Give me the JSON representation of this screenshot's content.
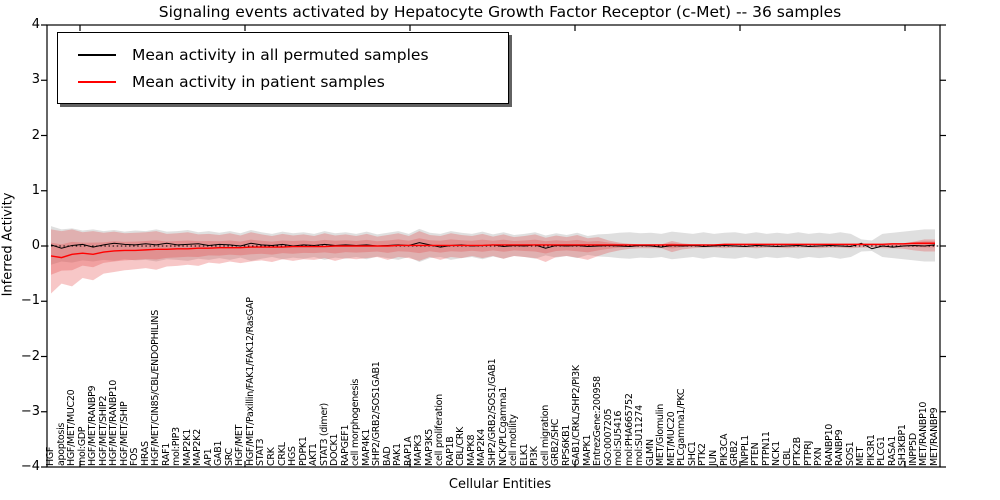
{
  "chart_data": {
    "type": "line",
    "title": "Signaling events activated by Hepatocyte Growth Factor Receptor (c-Met) -- 36 samples",
    "xlabel": "Cellular Entities",
    "ylabel": "Inferred Activity",
    "ylim": [
      -4,
      4
    ],
    "yticks": [
      4,
      3,
      2,
      1,
      0,
      -1,
      -2,
      -3,
      -4
    ],
    "grid": false,
    "legend_position": "upper left",
    "zero_line": {
      "value": 0,
      "style": "dotted",
      "color": "#000000"
    },
    "categories": [
      "HGF",
      "apoptosis",
      "HGF/MET/MUC20",
      "mol:GDP",
      "HGF/MET/RANBP9",
      "HGF/MET/SHIP2",
      "HGF/MET/RANBP10",
      "HGF/MET/SHIP",
      "FOS",
      "HRAS",
      "HGF/MET/CIN85/CBL/ENDOPHILINS",
      "RAF1",
      "mol:PIP3",
      "MAP2K1",
      "MAP2K2",
      "AP1",
      "GAB1",
      "SRC",
      "HGF/MET",
      "HGF/MET/Paxillin/FAK1/FAK12/RasGAP",
      "STAT3",
      "CRK",
      "CRKL",
      "HGS",
      "PDPK1",
      "AKT1",
      "STAT3 (dimer)",
      "DOCK1",
      "RAPGEF1",
      "cell morphogenesis",
      "MAP4K1",
      "SHP2/GRB2/SOS1GAB1",
      "BAD",
      "PAK1",
      "RAP1A",
      "MAPK3",
      "MAP3K5",
      "cell proliferation",
      "RAP1B",
      "CBL/CRK",
      "MAPK8",
      "MAP2K4",
      "SHP2/GRB2/SOS1/GAB1",
      "NCK/PLCgamma1",
      "cell motility",
      "ELK1",
      "PI3K",
      "cell migration",
      "GRB2/SHC",
      "RPS6KB1",
      "GAB1/CRKL/SHP2/PI3K",
      "MAPK1",
      "EntrezGene:200958",
      "GO:0007205",
      "mol:SU5416",
      "mol:PHA665752",
      "mol:SU11274",
      "GLMN",
      "MET/Glomulin",
      "MET/MUC20",
      "PLCgamma1/PKC",
      "SHC1",
      "PTK2",
      "JUN",
      "PIK3CA",
      "GRB2",
      "INPPL1",
      "PTEN",
      "PTPN11",
      "NCK1",
      "CBL",
      "PTK2B",
      "PTPRJ",
      "PXN",
      "RANBP10",
      "RANBP9",
      "SOS1",
      "MET",
      "PIK3R1",
      "PLCG1",
      "RASA1",
      "SH3KBP1",
      "INPP5D",
      "MET/RANBP10",
      "MET/RANBP9"
    ],
    "series": [
      {
        "name": "Mean activity in all permuted samples",
        "color": "#000000",
        "values": [
          0.02,
          -0.04,
          0.01,
          0.03,
          -0.02,
          0.02,
          0.05,
          0.03,
          0.02,
          0.04,
          0.02,
          0.05,
          0.02,
          0.03,
          0.04,
          0.01,
          0.03,
          0.02,
          0.0,
          0.05,
          0.02,
          0.01,
          0.03,
          0.0,
          0.02,
          0.01,
          0.03,
          0.01,
          0.02,
          0.01,
          0.02,
          0.0,
          0.01,
          0.02,
          0.01,
          0.06,
          0.02,
          -0.02,
          0.01,
          0.02,
          0.0,
          0.01,
          0.02,
          -0.01,
          0.01,
          0.0,
          0.02,
          -0.04,
          0.01,
          0.0,
          0.01,
          -0.01,
          0.0,
          0.01,
          0.0,
          -0.01,
          0.01,
          0.0,
          -0.02,
          0.01,
          0.0,
          0.01,
          -0.01,
          0.0,
          0.01,
          0.0,
          -0.01,
          0.01,
          0.0,
          -0.01,
          0.0,
          0.01,
          -0.01,
          0.0,
          0.01,
          0.0,
          -0.01,
          0.05,
          -0.05,
          0.0,
          -0.02,
          0.0,
          0.01,
          0.0,
          0.02
        ]
      },
      {
        "name": "Mean activity in patient samples",
        "color": "#ff0000",
        "values": [
          -0.18,
          -0.21,
          -0.15,
          -0.13,
          -0.15,
          -0.11,
          -0.09,
          -0.08,
          -0.08,
          -0.07,
          -0.06,
          -0.06,
          -0.05,
          -0.05,
          -0.04,
          -0.04,
          -0.03,
          -0.03,
          -0.03,
          -0.02,
          -0.02,
          -0.02,
          -0.02,
          -0.01,
          -0.01,
          -0.01,
          -0.01,
          0.0,
          0.0,
          0.0,
          0.0,
          0.0,
          0.0,
          0.01,
          0.01,
          0.01,
          0.01,
          0.01,
          0.01,
          0.01,
          0.01,
          0.01,
          0.02,
          0.02,
          0.02,
          0.02,
          0.02,
          0.02,
          0.02,
          0.02,
          0.02,
          0.02,
          0.02,
          0.02,
          0.02,
          0.02,
          0.02,
          0.02,
          0.02,
          0.02,
          0.02,
          0.02,
          0.02,
          0.02,
          0.03,
          0.03,
          0.03,
          0.03,
          0.03,
          0.03,
          0.03,
          0.03,
          0.03,
          0.03,
          0.03,
          0.03,
          0.03,
          0.03,
          0.03,
          0.03,
          0.04,
          0.04,
          0.05,
          0.05,
          0.05
        ]
      }
    ],
    "bands": [
      {
        "name": "permuted samples range",
        "color": "#aaaaaa",
        "opacity": 0.38,
        "upper": [
          0.36,
          0.3,
          0.32,
          0.28,
          0.3,
          0.27,
          0.29,
          0.26,
          0.28,
          0.27,
          0.3,
          0.26,
          0.27,
          0.29,
          0.25,
          0.27,
          0.24,
          0.27,
          0.23,
          0.29,
          0.25,
          0.22,
          0.26,
          0.23,
          0.25,
          0.22,
          0.27,
          0.23,
          0.25,
          0.22,
          0.26,
          0.21,
          0.24,
          0.27,
          0.22,
          0.31,
          0.24,
          0.22,
          0.27,
          0.24,
          0.22,
          0.26,
          0.21,
          0.25,
          0.2,
          0.22,
          0.25,
          0.19,
          0.23,
          0.2,
          0.24,
          0.18,
          0.21,
          0.22,
          0.24,
          0.25,
          0.23,
          0.24,
          0.22,
          0.26,
          0.24,
          0.22,
          0.25,
          0.22,
          0.24,
          0.25,
          0.22,
          0.25,
          0.22,
          0.24,
          0.22,
          0.25,
          0.22,
          0.24,
          0.22,
          0.25,
          0.22,
          0.12,
          0.1,
          0.22,
          0.24,
          0.26,
          0.28,
          0.3,
          0.3
        ],
        "lower": [
          -0.34,
          -0.28,
          -0.3,
          -0.26,
          -0.28,
          -0.25,
          -0.27,
          -0.24,
          -0.26,
          -0.25,
          -0.28,
          -0.24,
          -0.25,
          -0.27,
          -0.23,
          -0.25,
          -0.22,
          -0.25,
          -0.21,
          -0.27,
          -0.23,
          -0.2,
          -0.24,
          -0.21,
          -0.23,
          -0.2,
          -0.25,
          -0.21,
          -0.23,
          -0.2,
          -0.24,
          -0.19,
          -0.22,
          -0.25,
          -0.2,
          -0.29,
          -0.22,
          -0.2,
          -0.25,
          -0.22,
          -0.2,
          -0.24,
          -0.19,
          -0.23,
          -0.18,
          -0.2,
          -0.23,
          -0.17,
          -0.21,
          -0.18,
          -0.22,
          -0.16,
          -0.19,
          -0.2,
          -0.22,
          -0.23,
          -0.21,
          -0.22,
          -0.2,
          -0.24,
          -0.22,
          -0.2,
          -0.23,
          -0.2,
          -0.22,
          -0.23,
          -0.2,
          -0.23,
          -0.2,
          -0.22,
          -0.2,
          -0.23,
          -0.2,
          -0.22,
          -0.2,
          -0.23,
          -0.2,
          -0.1,
          -0.09,
          -0.2,
          -0.22,
          -0.24,
          -0.26,
          -0.28,
          -0.28
        ]
      },
      {
        "name": "patient samples range",
        "color": "#e64545",
        "opacity": 0.3,
        "upper": [
          0.3,
          0.27,
          0.3,
          0.25,
          0.27,
          0.24,
          0.26,
          0.23,
          0.24,
          0.25,
          0.27,
          0.22,
          0.23,
          0.25,
          0.21,
          0.22,
          0.2,
          0.23,
          0.19,
          0.25,
          0.21,
          0.18,
          0.22,
          0.19,
          0.21,
          0.18,
          0.23,
          0.19,
          0.21,
          0.18,
          0.22,
          0.17,
          0.2,
          0.23,
          0.18,
          0.27,
          0.2,
          0.18,
          0.23,
          0.2,
          0.18,
          0.22,
          0.17,
          0.21,
          0.16,
          0.18,
          0.21,
          0.15,
          0.19,
          0.16,
          0.2,
          0.14,
          0.16,
          0.1,
          0.06,
          0.04,
          0.03,
          0.03,
          0.03,
          0.09,
          0.05,
          0.03,
          0.03,
          0.02,
          0.03,
          0.03,
          0.02,
          0.03,
          0.02,
          0.03,
          0.02,
          0.03,
          0.02,
          0.03,
          0.02,
          0.03,
          0.02,
          0.03,
          0.03,
          0.03,
          0.04,
          0.05,
          0.08,
          0.12,
          0.12
        ],
        "lower": [
          -0.86,
          -0.68,
          -0.73,
          -0.58,
          -0.62,
          -0.5,
          -0.47,
          -0.44,
          -0.42,
          -0.4,
          -0.43,
          -0.37,
          -0.36,
          -0.34,
          -0.36,
          -0.3,
          -0.32,
          -0.28,
          -0.31,
          -0.28,
          -0.26,
          -0.29,
          -0.24,
          -0.27,
          -0.24,
          -0.25,
          -0.22,
          -0.27,
          -0.22,
          -0.24,
          -0.22,
          -0.2,
          -0.25,
          -0.2,
          -0.22,
          -0.27,
          -0.2,
          -0.25,
          -0.2,
          -0.22,
          -0.18,
          -0.22,
          -0.18,
          -0.23,
          -0.18,
          -0.2,
          -0.22,
          -0.29,
          -0.2,
          -0.18,
          -0.21,
          -0.25,
          -0.18,
          -0.12,
          -0.08,
          -0.05,
          -0.04,
          -0.04,
          -0.04,
          -0.11,
          -0.06,
          -0.04,
          -0.03,
          -0.03,
          -0.04,
          -0.03,
          -0.03,
          -0.04,
          -0.03,
          -0.03,
          -0.04,
          -0.03,
          -0.03,
          -0.04,
          -0.03,
          -0.03,
          -0.04,
          -0.03,
          -0.03,
          -0.04,
          -0.04,
          -0.05,
          -0.08,
          -0.1,
          -0.1
        ]
      }
    ]
  }
}
